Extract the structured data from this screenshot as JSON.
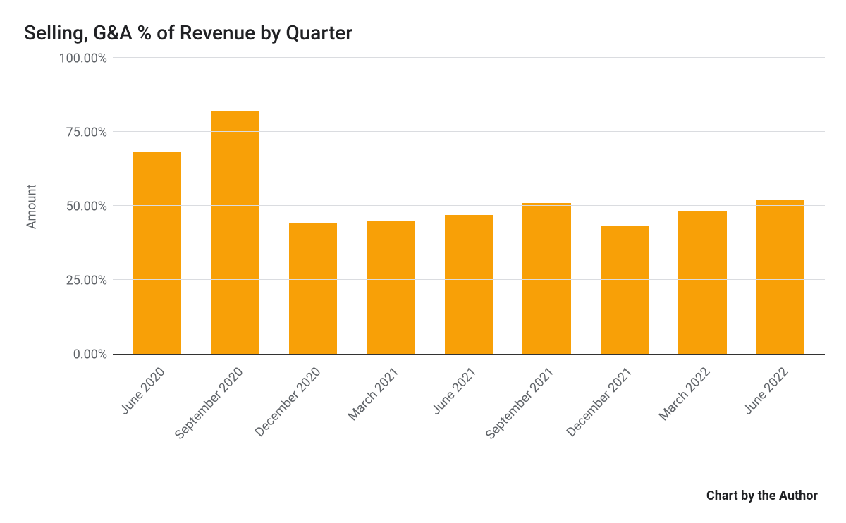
{
  "chart": {
    "type": "bar",
    "title": "Selling, G&A % of Revenue by Quarter",
    "title_fontsize": 28,
    "title_color": "#202124",
    "ylabel": "Amount",
    "label_fontsize": 18,
    "label_color": "#5f6368",
    "background_color": "#ffffff",
    "grid_color": "#dadce0",
    "baseline_color": "#333333",
    "ylim": [
      0,
      100
    ],
    "ytick_step": 25,
    "yticks": [
      "0.00%",
      "25.00%",
      "50.00%",
      "75.00%",
      "100.00%"
    ],
    "tick_fontsize": 18,
    "categories": [
      "June 2020",
      "September 2020",
      "December 2020",
      "March 2021",
      "June 2021",
      "September 2021",
      "December 2021",
      "March 2022",
      "June 2022"
    ],
    "values": [
      68,
      82,
      44,
      45,
      47,
      51,
      43,
      48,
      52
    ],
    "bar_color": "#f8a007",
    "bar_width": 0.62,
    "xlabel_rotation": -47,
    "attribution": "Chart by the Author",
    "attribution_fontsize": 18,
    "attribution_weight": 700
  }
}
